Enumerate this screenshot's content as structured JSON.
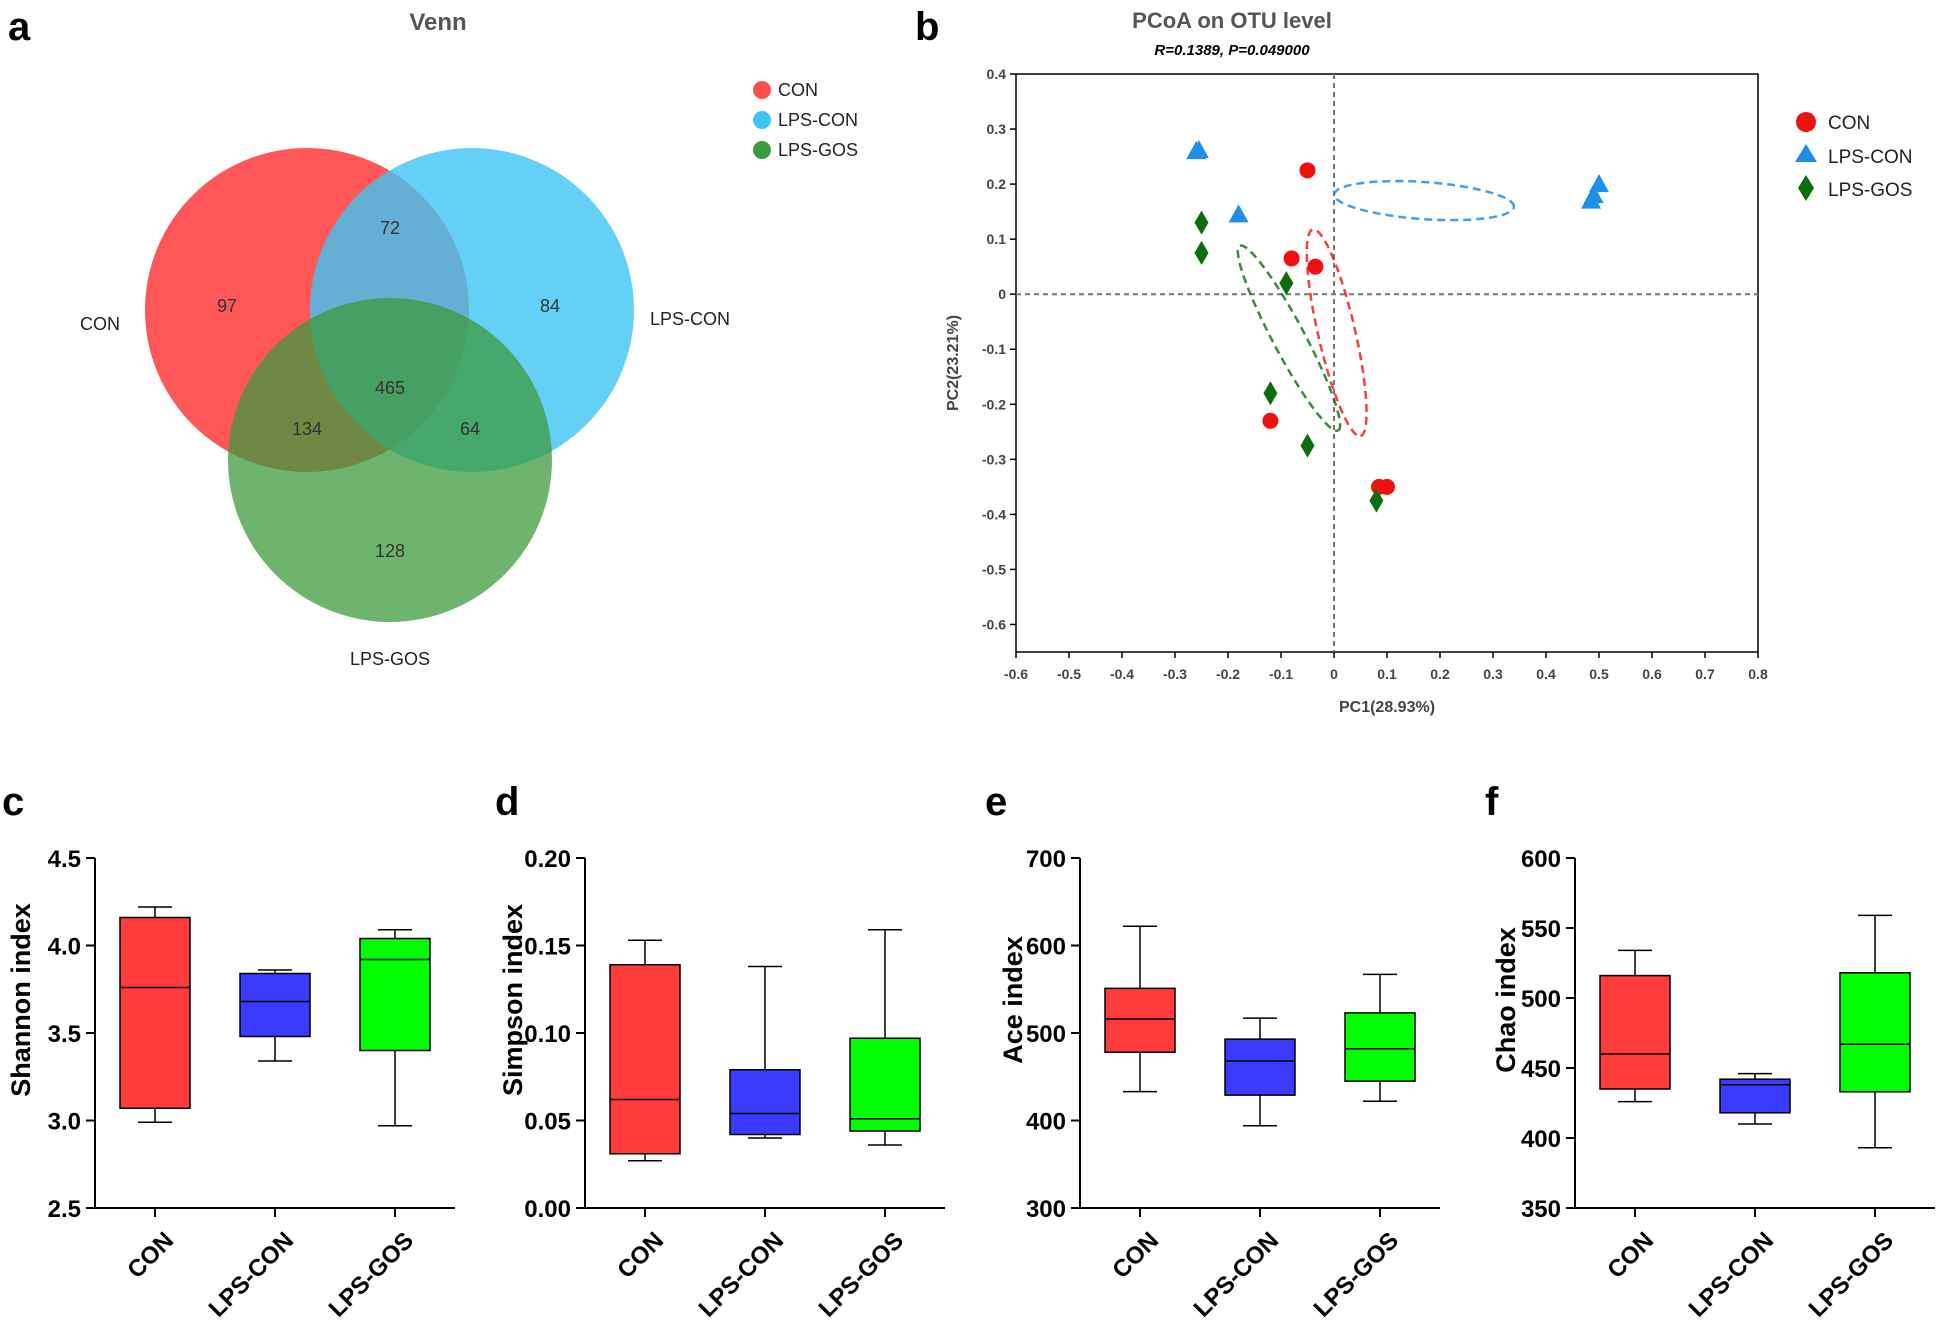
{
  "panels": {
    "a": "a",
    "b": "b",
    "c": "c",
    "d": "d",
    "e": "e",
    "f": "f"
  },
  "colors": {
    "CON": "#ff4d4f",
    "LPS-CON": "#3ec4f4",
    "LPS-GOS": "#3d9b3d",
    "box_CON": "#ff3b3b",
    "box_LPS-CON": "#3b3bff",
    "box_LPS-GOS": "#00ff00",
    "pcoa_CON": "#ee1111",
    "pcoa_LPS-CON": "#1e8fe6",
    "pcoa_LPS-GOS": "#0b6e0b"
  },
  "chart_data": [
    {
      "type": "venn",
      "title": "Venn",
      "sets": [
        "CON",
        "LPS-CON",
        "LPS-GOS"
      ],
      "legend": [
        "CON",
        "LPS-CON",
        "LPS-GOS"
      ],
      "regions": {
        "CON_only": "97",
        "LPS-CON_only": "84",
        "LPS-GOS_only": "128",
        "CON_LPS-CON": "72",
        "CON_LPS-GOS": "134",
        "LPS-CON_LPS-GOS": "64",
        "all": "465"
      }
    },
    {
      "type": "scatter",
      "title": "PCoA on OTU level",
      "subtitle": "R=0.1389, P=0.049000",
      "xlabel": "PC1(28.93%)",
      "ylabel": "PC2(23.21%)",
      "xlim": [
        -0.6,
        0.8
      ],
      "ylim": [
        -0.65,
        0.4
      ],
      "xticks": [
        "-0.6",
        "-0.5",
        "-0.4",
        "-0.3",
        "-0.2",
        "-0.1",
        "0",
        "0.1",
        "0.2",
        "0.3",
        "0.4",
        "0.5",
        "0.6",
        "0.7",
        "0.8"
      ],
      "yticks": [
        "0.4",
        "0.3",
        "0.2",
        "0.1",
        "0",
        "-0.1",
        "-0.2",
        "-0.3",
        "-0.4",
        "-0.5",
        "-0.6"
      ],
      "legend": [
        "CON",
        "LPS-CON",
        "LPS-GOS"
      ],
      "series": [
        {
          "name": "CON",
          "marker": "circle",
          "points": [
            [
              -0.05,
              0.225
            ],
            [
              -0.08,
              0.065
            ],
            [
              -0.035,
              0.05
            ],
            [
              -0.12,
              -0.23
            ],
            [
              0.085,
              -0.35
            ],
            [
              0.1,
              -0.35
            ]
          ]
        },
        {
          "name": "LPS-CON",
          "marker": "triangle",
          "points": [
            [
              -0.26,
              0.26
            ],
            [
              -0.255,
              0.262
            ],
            [
              -0.18,
              0.145
            ],
            [
              0.485,
              0.17
            ],
            [
              0.49,
              0.18
            ],
            [
              0.5,
              0.2
            ]
          ]
        },
        {
          "name": "LPS-GOS",
          "marker": "diamond",
          "points": [
            [
              -0.25,
              0.13
            ],
            [
              -0.25,
              0.075
            ],
            [
              -0.09,
              0.02
            ],
            [
              -0.12,
              -0.18
            ],
            [
              -0.05,
              -0.275
            ],
            [
              0.08,
              -0.375
            ]
          ]
        }
      ],
      "ellipses": [
        {
          "group": "LPS-CON",
          "center": [
            0.17,
            0.17
          ],
          "rx": 0.34,
          "ry": 0.07,
          "angle": -4
        },
        {
          "group": "CON",
          "center": [
            0.005,
            -0.07
          ],
          "rx": 0.4,
          "ry": 0.07,
          "angle": -77
        },
        {
          "group": "LPS-GOS",
          "center": [
            -0.085,
            -0.08
          ],
          "rx": 0.395,
          "ry": 0.06,
          "angle": -62
        }
      ]
    },
    {
      "type": "box",
      "ylabel": "Shannon index",
      "ylim": [
        2.5,
        4.5
      ],
      "yticks": [
        "2.5",
        "3.0",
        "3.5",
        "4.0",
        "4.5"
      ],
      "categories": [
        "CON",
        "LPS-CON",
        "LPS-GOS"
      ],
      "boxes": [
        {
          "min": 2.99,
          "q1": 3.07,
          "median": 3.76,
          "q3": 4.16,
          "max": 4.22
        },
        {
          "min": 3.34,
          "q1": 3.48,
          "median": 3.68,
          "q3": 3.84,
          "max": 3.86
        },
        {
          "min": 2.97,
          "q1": 3.4,
          "median": 3.92,
          "q3": 4.04,
          "max": 4.09
        }
      ]
    },
    {
      "type": "box",
      "ylabel": "Simpson index",
      "ylim": [
        0,
        0.2
      ],
      "yticks": [
        "0.00",
        "0.05",
        "0.10",
        "0.15",
        "0.20"
      ],
      "categories": [
        "CON",
        "LPS-CON",
        "LPS-GOS"
      ],
      "boxes": [
        {
          "min": 0.027,
          "q1": 0.031,
          "median": 0.062,
          "q3": 0.139,
          "max": 0.153
        },
        {
          "min": 0.04,
          "q1": 0.042,
          "median": 0.054,
          "q3": 0.079,
          "max": 0.138
        },
        {
          "min": 0.036,
          "q1": 0.044,
          "median": 0.051,
          "q3": 0.097,
          "max": 0.159
        }
      ]
    },
    {
      "type": "box",
      "ylabel": "Ace index",
      "ylim": [
        300,
        700
      ],
      "yticks": [
        "300",
        "400",
        "500",
        "600",
        "700"
      ],
      "categories": [
        "CON",
        "LPS-CON",
        "LPS-GOS"
      ],
      "boxes": [
        {
          "min": 433,
          "q1": 478,
          "median": 516,
          "q3": 551,
          "max": 622
        },
        {
          "min": 394,
          "q1": 429,
          "median": 468,
          "q3": 493,
          "max": 517
        },
        {
          "min": 422,
          "q1": 445,
          "median": 482,
          "q3": 523,
          "max": 567
        }
      ]
    },
    {
      "type": "box",
      "ylabel": "Chao index",
      "ylim": [
        350,
        600
      ],
      "yticks": [
        "350",
        "400",
        "450",
        "500",
        "550",
        "600"
      ],
      "categories": [
        "CON",
        "LPS-CON",
        "LPS-GOS"
      ],
      "boxes": [
        {
          "min": 426,
          "q1": 435,
          "median": 460,
          "q3": 516,
          "max": 534
        },
        {
          "min": 410,
          "q1": 418,
          "median": 438,
          "q3": 442,
          "max": 446
        },
        {
          "min": 393,
          "q1": 433,
          "median": 467,
          "q3": 518,
          "max": 559
        }
      ]
    }
  ]
}
